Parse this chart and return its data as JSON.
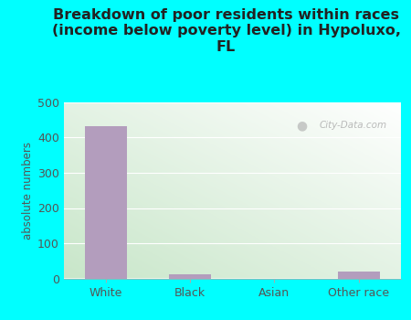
{
  "categories": [
    "White",
    "Black",
    "Asian",
    "Other race"
  ],
  "values": [
    432,
    12,
    0,
    20
  ],
  "bar_color": "#b39dbd",
  "title": "Breakdown of poor residents within races\n(income below poverty level) in Hypoluxo,\nFL",
  "ylabel": "absolute numbers",
  "ylim": [
    0,
    500
  ],
  "yticks": [
    0,
    100,
    200,
    300,
    400,
    500
  ],
  "background_outer": "#00ffff",
  "title_color": "#222222",
  "title_fontsize": 11.5,
  "axis_label_fontsize": 8.5,
  "tick_fontsize": 9,
  "tick_color": "#555555",
  "watermark_text": "City-Data.com",
  "grid_color": "#dddddd",
  "gradient_bottom_left": "#c8e6c9",
  "gradient_top_right": "#ffffff"
}
